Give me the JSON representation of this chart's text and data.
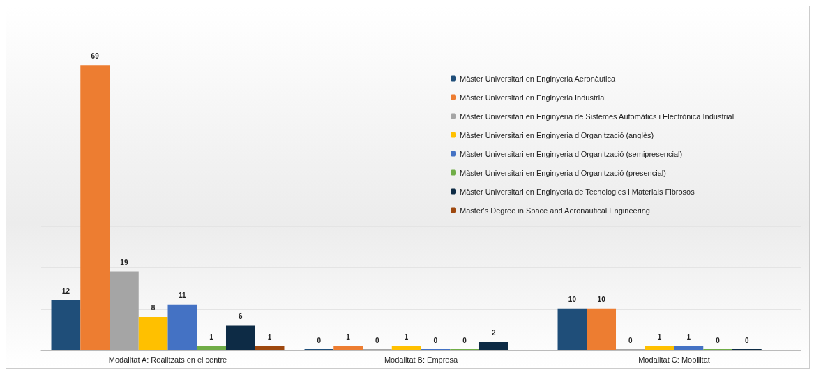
{
  "chart_data": {
    "type": "bar",
    "categories": [
      "Modalitat A: Realitzats en el centre",
      "Modalitat B: Empresa",
      "Modalitat C: Mobilitat"
    ],
    "series": [
      {
        "name": "Màster Universitari en Enginyeria Aeronàutica",
        "color": "#1f4e79",
        "values": [
          12,
          0,
          10
        ]
      },
      {
        "name": "Màster Universitari en Enginyeria Industrial",
        "color": "#ed7d31",
        "values": [
          69,
          1,
          10
        ]
      },
      {
        "name": "Màster Universitari en Enginyeria de Sistemes Automàtics i Electrònica Industrial",
        "color": "#a5a5a5",
        "values": [
          19,
          0,
          0
        ]
      },
      {
        "name": "Màster Universitari en Enginyeria d’Organització (anglès)",
        "color": "#ffc000",
        "values": [
          8,
          1,
          1
        ]
      },
      {
        "name": "Màster Universitari en Enginyeria d’Organització (semipresencial)",
        "color": "#4472c4",
        "values": [
          11,
          0,
          1
        ]
      },
      {
        "name": "Màster Universitari en Enginyeria d’Organització (presencial)",
        "color": "#70ad47",
        "values": [
          1,
          0,
          0
        ]
      },
      {
        "name": "Màster Universitari en Enginyeria de Tecnologies i Materials Fibrosos",
        "color": "#0d2b45",
        "values": [
          6,
          2,
          0
        ]
      },
      {
        "name": "Master's Degree in Space and Aeronautical Engineering",
        "color": "#9e480e",
        "values": [
          1,
          null,
          null
        ]
      }
    ],
    "ylim": [
      0,
      80
    ],
    "yticks": [
      {
        "value": 0,
        "label": null
      },
      {
        "value": 10,
        "label": null
      },
      {
        "value": 20,
        "label": null
      },
      {
        "value": 30,
        "label": null
      },
      {
        "value": 40,
        "label": null
      },
      {
        "value": 50,
        "label": null
      },
      {
        "value": 60,
        "label": null
      },
      {
        "value": 70,
        "label": null
      },
      {
        "value": 80,
        "label": null
      }
    ],
    "tick_labels": "x",
    "grid": "y",
    "legend": "top right",
    "data_labels": true
  }
}
